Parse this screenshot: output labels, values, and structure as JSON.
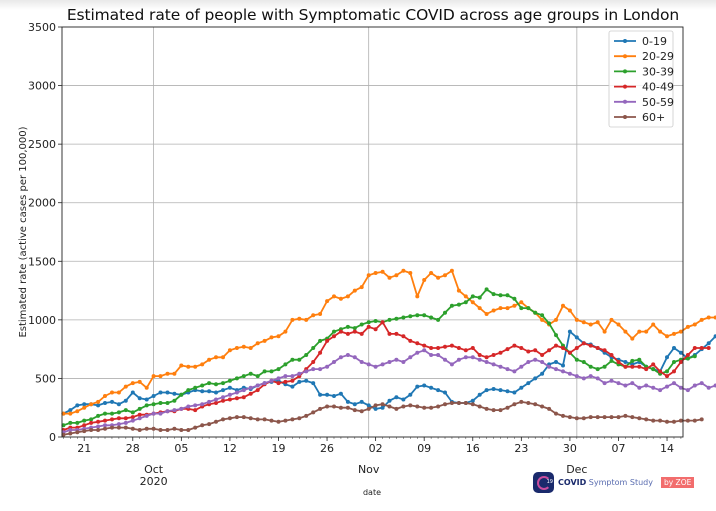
{
  "chart_data": {
    "type": "line",
    "title": "Estimated rate of people with Symptomatic COVID across age groups in London",
    "xlabel": "date",
    "ylabel": "Estimated rate (active cases per 100,000)",
    "ylim": [
      0,
      3500
    ],
    "yticks": [
      0,
      500,
      1000,
      1500,
      2000,
      2500,
      3000,
      3500
    ],
    "x_start_date": "2020-09-18",
    "x_end_date": "2020-12-16",
    "xtick_labels": [
      {
        "day_offset": 3,
        "label": "21"
      },
      {
        "day_offset": 10,
        "label": "28"
      },
      {
        "day_offset": 17,
        "label": "05"
      },
      {
        "day_offset": 24,
        "label": "12"
      },
      {
        "day_offset": 31,
        "label": "19"
      },
      {
        "day_offset": 38,
        "label": "26"
      },
      {
        "day_offset": 45,
        "label": "02"
      },
      {
        "day_offset": 52,
        "label": "09"
      },
      {
        "day_offset": 59,
        "label": "16"
      },
      {
        "day_offset": 66,
        "label": "23"
      },
      {
        "day_offset": 73,
        "label": "30"
      },
      {
        "day_offset": 80,
        "label": "07"
      },
      {
        "day_offset": 87,
        "label": "14"
      }
    ],
    "month_labels": [
      {
        "day_offset": 13,
        "label": "Oct",
        "sublabel": "2020"
      },
      {
        "day_offset": 44,
        "label": "Nov",
        "sublabel": ""
      },
      {
        "day_offset": 74,
        "label": "Dec",
        "sublabel": ""
      }
    ],
    "vertical_grid_day_offsets": [
      13,
      44,
      74
    ],
    "grid": true,
    "legend_position": "top-right",
    "series": [
      {
        "name": "0-19",
        "color": "#1f77b4",
        "values": [
          200,
          230,
          270,
          280,
          280,
          270,
          290,
          300,
          280,
          310,
          380,
          330,
          320,
          350,
          380,
          380,
          370,
          360,
          380,
          400,
          390,
          390,
          380,
          400,
          420,
          400,
          420,
          410,
          440,
          460,
          470,
          480,
          450,
          430,
          470,
          480,
          460,
          360,
          360,
          350,
          370,
          300,
          280,
          300,
          270,
          240,
          250,
          310,
          340,
          320,
          360,
          430,
          440,
          420,
          400,
          380,
          300,
          290,
          290,
          310,
          360,
          400,
          410,
          400,
          390,
          380,
          420,
          460,
          500,
          540,
          620,
          640,
          610,
          900,
          850,
          800,
          790,
          760,
          720,
          680,
          660,
          640,
          620,
          640,
          600,
          580,
          560,
          680,
          760,
          720,
          670,
          700,
          750,
          800,
          860
        ]
      },
      {
        "name": "20-29",
        "color": "#ff7f0e",
        "values": [
          200,
          200,
          220,
          250,
          280,
          300,
          350,
          380,
          380,
          430,
          460,
          470,
          420,
          520,
          520,
          540,
          540,
          610,
          600,
          600,
          620,
          660,
          680,
          680,
          740,
          760,
          770,
          760,
          800,
          820,
          850,
          860,
          900,
          1000,
          1010,
          1000,
          1040,
          1050,
          1160,
          1200,
          1180,
          1200,
          1250,
          1280,
          1380,
          1400,
          1410,
          1360,
          1380,
          1420,
          1400,
          1200,
          1340,
          1400,
          1360,
          1380,
          1420,
          1250,
          1200,
          1150,
          1100,
          1050,
          1080,
          1100,
          1100,
          1120,
          1150,
          1100,
          1060,
          1000,
          960,
          1000,
          1120,
          1080,
          1000,
          980,
          960,
          980,
          900,
          1000,
          960,
          900,
          840,
          900,
          900,
          960,
          900,
          860,
          880,
          900,
          940,
          960,
          1000,
          1020,
          1020
        ]
      },
      {
        "name": "30-39",
        "color": "#2ca02c",
        "values": [
          100,
          120,
          120,
          140,
          150,
          180,
          200,
          200,
          210,
          230,
          210,
          240,
          270,
          280,
          290,
          290,
          310,
          360,
          400,
          420,
          440,
          460,
          450,
          460,
          480,
          500,
          520,
          540,
          520,
          560,
          560,
          580,
          620,
          660,
          660,
          700,
          760,
          820,
          840,
          900,
          920,
          940,
          930,
          960,
          980,
          990,
          980,
          1000,
          1010,
          1020,
          1030,
          1040,
          1040,
          1020,
          1000,
          1060,
          1120,
          1130,
          1150,
          1200,
          1190,
          1260,
          1220,
          1210,
          1210,
          1180,
          1100,
          1100,
          1060,
          1040,
          970,
          870,
          780,
          720,
          660,
          640,
          600,
          580,
          600,
          650,
          620,
          600,
          650,
          660,
          600,
          580,
          540,
          560,
          640,
          660,
          670,
          690
        ]
      },
      {
        "name": "40-49",
        "color": "#d62728",
        "values": [
          60,
          80,
          80,
          100,
          120,
          130,
          140,
          150,
          160,
          160,
          170,
          190,
          190,
          200,
          210,
          220,
          220,
          240,
          240,
          230,
          260,
          280,
          290,
          310,
          320,
          330,
          340,
          370,
          400,
          450,
          480,
          460,
          470,
          480,
          520,
          580,
          640,
          720,
          820,
          860,
          900,
          880,
          900,
          880,
          940,
          920,
          980,
          880,
          880,
          860,
          820,
          800,
          780,
          760,
          760,
          770,
          780,
          760,
          740,
          760,
          700,
          680,
          700,
          720,
          750,
          780,
          760,
          730,
          740,
          700,
          740,
          780,
          760,
          720,
          760,
          800,
          780,
          760,
          740,
          700,
          640,
          600,
          600,
          600,
          580,
          620,
          560,
          520,
          560,
          640,
          700,
          760,
          760,
          760
        ]
      },
      {
        "name": "50-59",
        "color": "#9467bd",
        "values": [
          40,
          60,
          60,
          70,
          80,
          90,
          100,
          100,
          110,
          120,
          140,
          160,
          180,
          200,
          200,
          220,
          230,
          240,
          260,
          270,
          280,
          300,
          320,
          340,
          360,
          380,
          400,
          420,
          440,
          460,
          480,
          500,
          520,
          520,
          540,
          560,
          580,
          580,
          600,
          640,
          680,
          700,
          680,
          640,
          620,
          600,
          620,
          640,
          660,
          640,
          680,
          720,
          740,
          700,
          700,
          660,
          620,
          660,
          680,
          680,
          660,
          640,
          620,
          600,
          580,
          560,
          600,
          640,
          660,
          640,
          600,
          580,
          560,
          540,
          520,
          500,
          520,
          500,
          460,
          480,
          460,
          440,
          460,
          420,
          440,
          420,
          400,
          430,
          460,
          420,
          400,
          440,
          460,
          420,
          440
        ]
      },
      {
        "name": "60+",
        "color": "#8c564b",
        "values": [
          20,
          30,
          40,
          50,
          60,
          60,
          70,
          80,
          80,
          80,
          70,
          60,
          70,
          70,
          60,
          60,
          70,
          60,
          60,
          80,
          100,
          110,
          130,
          150,
          160,
          170,
          170,
          160,
          150,
          150,
          140,
          130,
          140,
          150,
          160,
          180,
          210,
          240,
          260,
          260,
          250,
          250,
          230,
          220,
          240,
          270,
          280,
          260,
          240,
          260,
          270,
          260,
          250,
          250,
          260,
          280,
          290,
          290,
          290,
          280,
          260,
          240,
          230,
          230,
          250,
          280,
          300,
          290,
          280,
          260,
          240,
          200,
          180,
          170,
          160,
          160,
          170,
          170,
          170,
          170,
          170,
          180,
          170,
          160,
          150,
          140,
          140,
          130,
          130,
          140,
          140,
          140,
          150
        ]
      }
    ]
  },
  "legend": {
    "entries": [
      "0-19",
      "20-29",
      "30-39",
      "40-49",
      "50-59",
      "60+"
    ]
  },
  "branding": {
    "app_name_bold": "COVID",
    "app_name_rest": " Symptom Study",
    "badge": "by ZOE",
    "icon_number": "19"
  }
}
